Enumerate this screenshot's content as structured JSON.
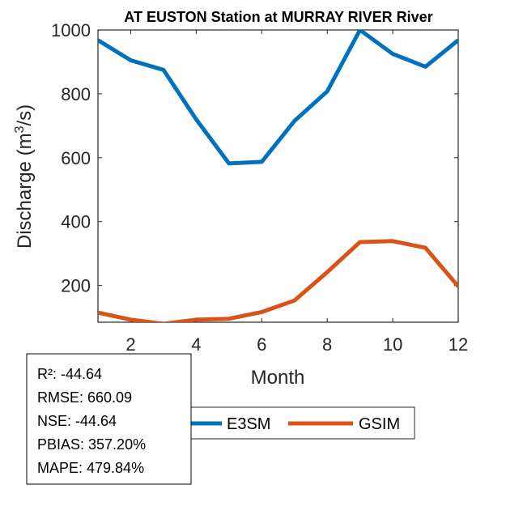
{
  "chart_data": {
    "type": "line",
    "title": "AT EUSTON  Station at  MURRAY RIVER  River",
    "xlabel": "Month",
    "ylabel_main": "Discharge (m",
    "ylabel_sup": "3",
    "ylabel_end": "/s)",
    "xlim": [
      1,
      12
    ],
    "ylim": [
      85,
      1000
    ],
    "xticks": [
      2,
      4,
      6,
      8,
      10,
      12
    ],
    "yticks": [
      200,
      400,
      600,
      800,
      1000
    ],
    "grid": false,
    "legend_position": "bottom-center",
    "x": [
      1,
      2,
      3,
      4,
      5,
      6,
      7,
      8,
      9,
      10,
      11,
      12
    ],
    "series": [
      {
        "name": "E3SM",
        "color": "#0072BD",
        "values": [
          968,
          905,
          875,
          720,
          582,
          587,
          715,
          808,
          1000,
          925,
          885,
          968
        ]
      },
      {
        "name": "GSIM",
        "color": "#D95319",
        "values": [
          115,
          93,
          80,
          93,
          96,
          117,
          153,
          242,
          336,
          339,
          318,
          197
        ]
      }
    ]
  },
  "stats": [
    "R²: -44.64",
    "RMSE: 660.09",
    "NSE: -44.64",
    "PBIAS: 357.20%",
    "MAPE: 479.84%"
  ]
}
